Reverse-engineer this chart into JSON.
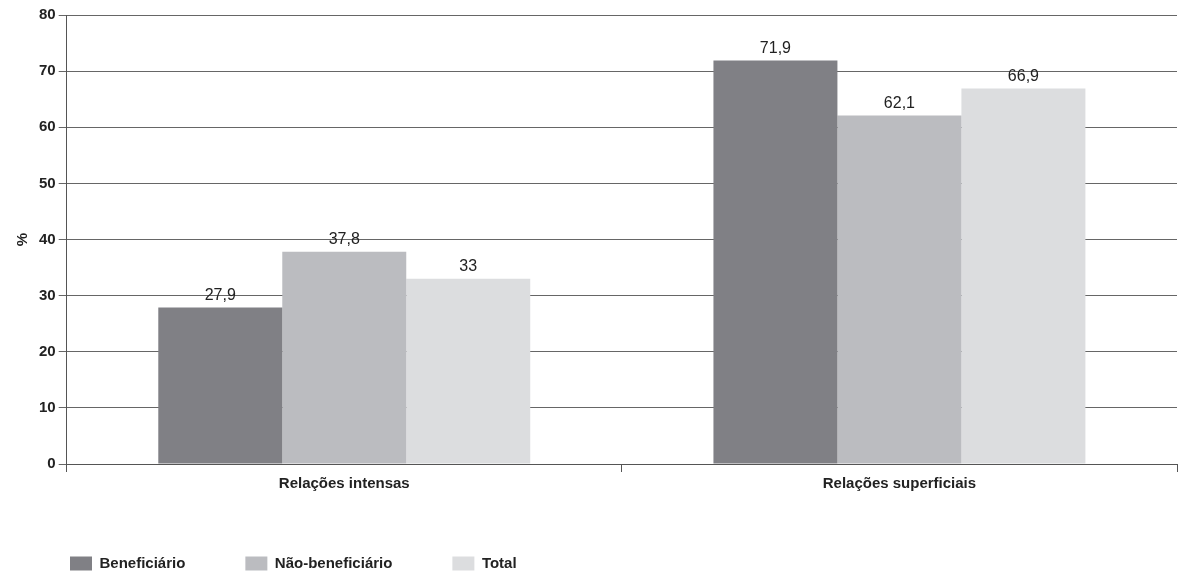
{
  "chart_data": {
    "type": "bar",
    "ylabel": "%",
    "categories": [
      "Relações intensas",
      "Relações superficiais"
    ],
    "series": [
      {
        "name": "Beneficiário",
        "color": "#808085",
        "values": [
          27.9,
          71.9
        ],
        "value_labels": [
          "27,9",
          "71,9"
        ]
      },
      {
        "name": "Não-beneficiário",
        "color": "#bbbcc0",
        "values": [
          37.8,
          62.1
        ],
        "value_labels": [
          "37,8",
          "62,1"
        ]
      },
      {
        "name": "Total",
        "color": "#dcdddf",
        "values": [
          33,
          66.9
        ],
        "value_labels": [
          "33",
          "66,9"
        ]
      }
    ],
    "ylim": [
      0,
      80
    ],
    "yticks": [
      0,
      10,
      20,
      30,
      40,
      50,
      60,
      70,
      80
    ],
    "grid": "y",
    "legend": "bottom left"
  }
}
